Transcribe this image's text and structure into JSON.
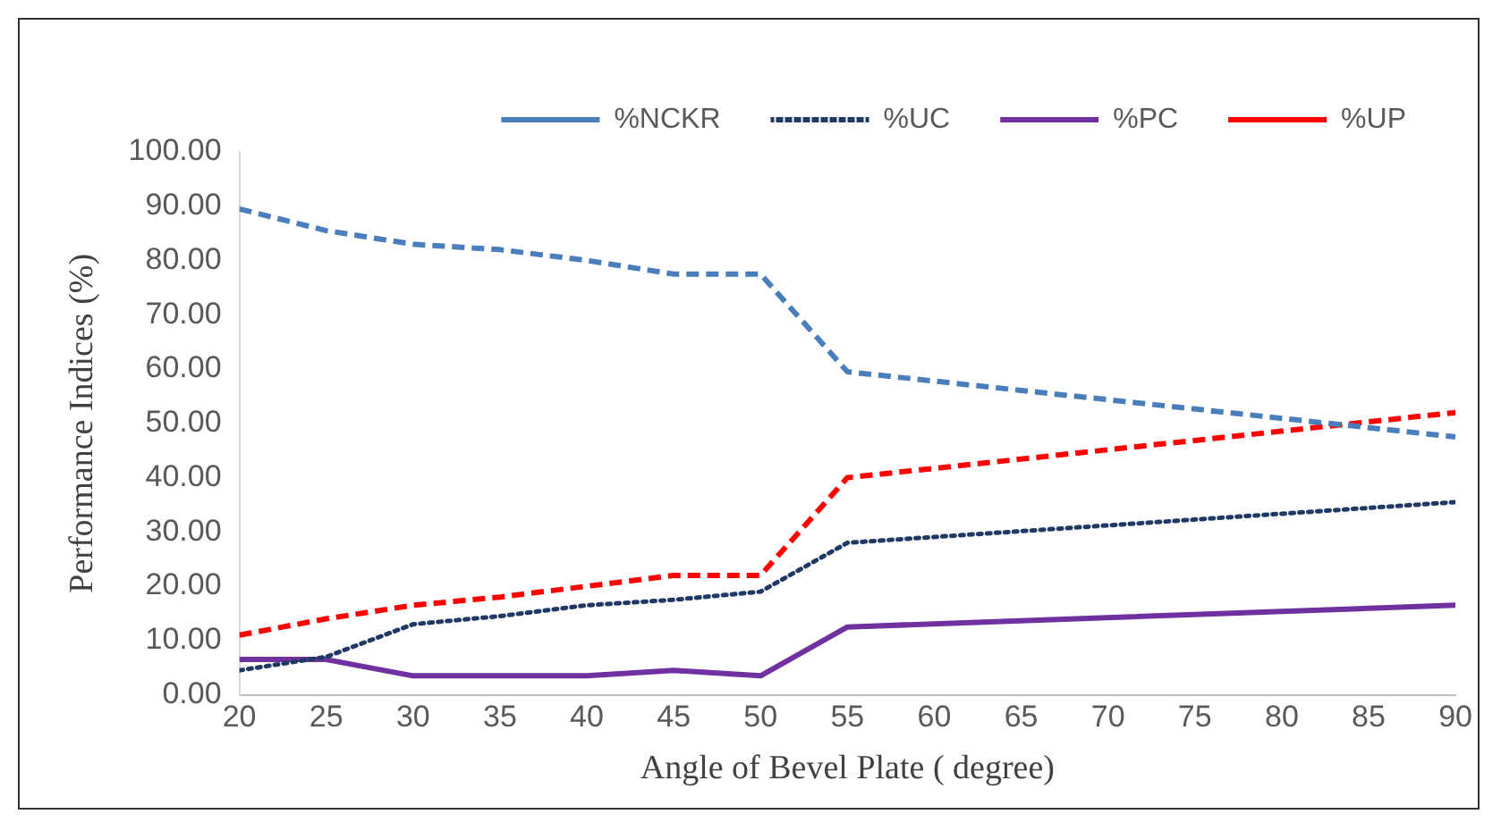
{
  "chart_data": {
    "type": "line",
    "xlabel": "Angle of Bevel Plate ( degree)",
    "ylabel": "Performance Indices (%)",
    "x": [
      20,
      25,
      30,
      35,
      40,
      45,
      50,
      55,
      90
    ],
    "series": [
      {
        "name": "%NCKR",
        "color": "#4a7ebb",
        "line_style": "dashed",
        "values": [
          89.5,
          85.5,
          83,
          82,
          80,
          77.5,
          77.5,
          59.5,
          47.5
        ]
      },
      {
        "name": "%UC",
        "color": "#1f3864",
        "line_style": "dotted",
        "values": [
          4.5,
          7,
          13,
          14.5,
          16.5,
          17.5,
          19,
          28,
          35.5
        ]
      },
      {
        "name": "%PC",
        "color": "#7030a0",
        "line_style": "solid",
        "values": [
          6.5,
          6.5,
          3.5,
          3.5,
          3.5,
          4.5,
          3.5,
          12.5,
          16.5
        ]
      },
      {
        "name": "%UP",
        "color": "#ff0000",
        "line_style": "dashed",
        "values": [
          11,
          14,
          16.5,
          18,
          20,
          22,
          22,
          40,
          52
        ]
      }
    ],
    "xlim": [
      20,
      90
    ],
    "xticks": [
      20,
      25,
      30,
      35,
      40,
      45,
      50,
      55,
      60,
      65,
      70,
      75,
      80,
      85,
      90
    ],
    "ylim": [
      0,
      100
    ],
    "yticks": [
      {
        "value": 0,
        "label": "0.00"
      },
      {
        "value": 10,
        "label": "10.00"
      },
      {
        "value": 20,
        "label": "20.00"
      },
      {
        "value": 30,
        "label": "30.00"
      },
      {
        "value": 40,
        "label": "40.00"
      },
      {
        "value": 50,
        "label": "50.00"
      },
      {
        "value": 60,
        "label": "60.00"
      },
      {
        "value": 70,
        "label": "70.00"
      },
      {
        "value": 80,
        "label": "80.00"
      },
      {
        "value": 90,
        "label": "90.00"
      },
      {
        "value": 100,
        "label": "100.00"
      }
    ],
    "grid": false,
    "legend": "top",
    "marker": "none"
  }
}
